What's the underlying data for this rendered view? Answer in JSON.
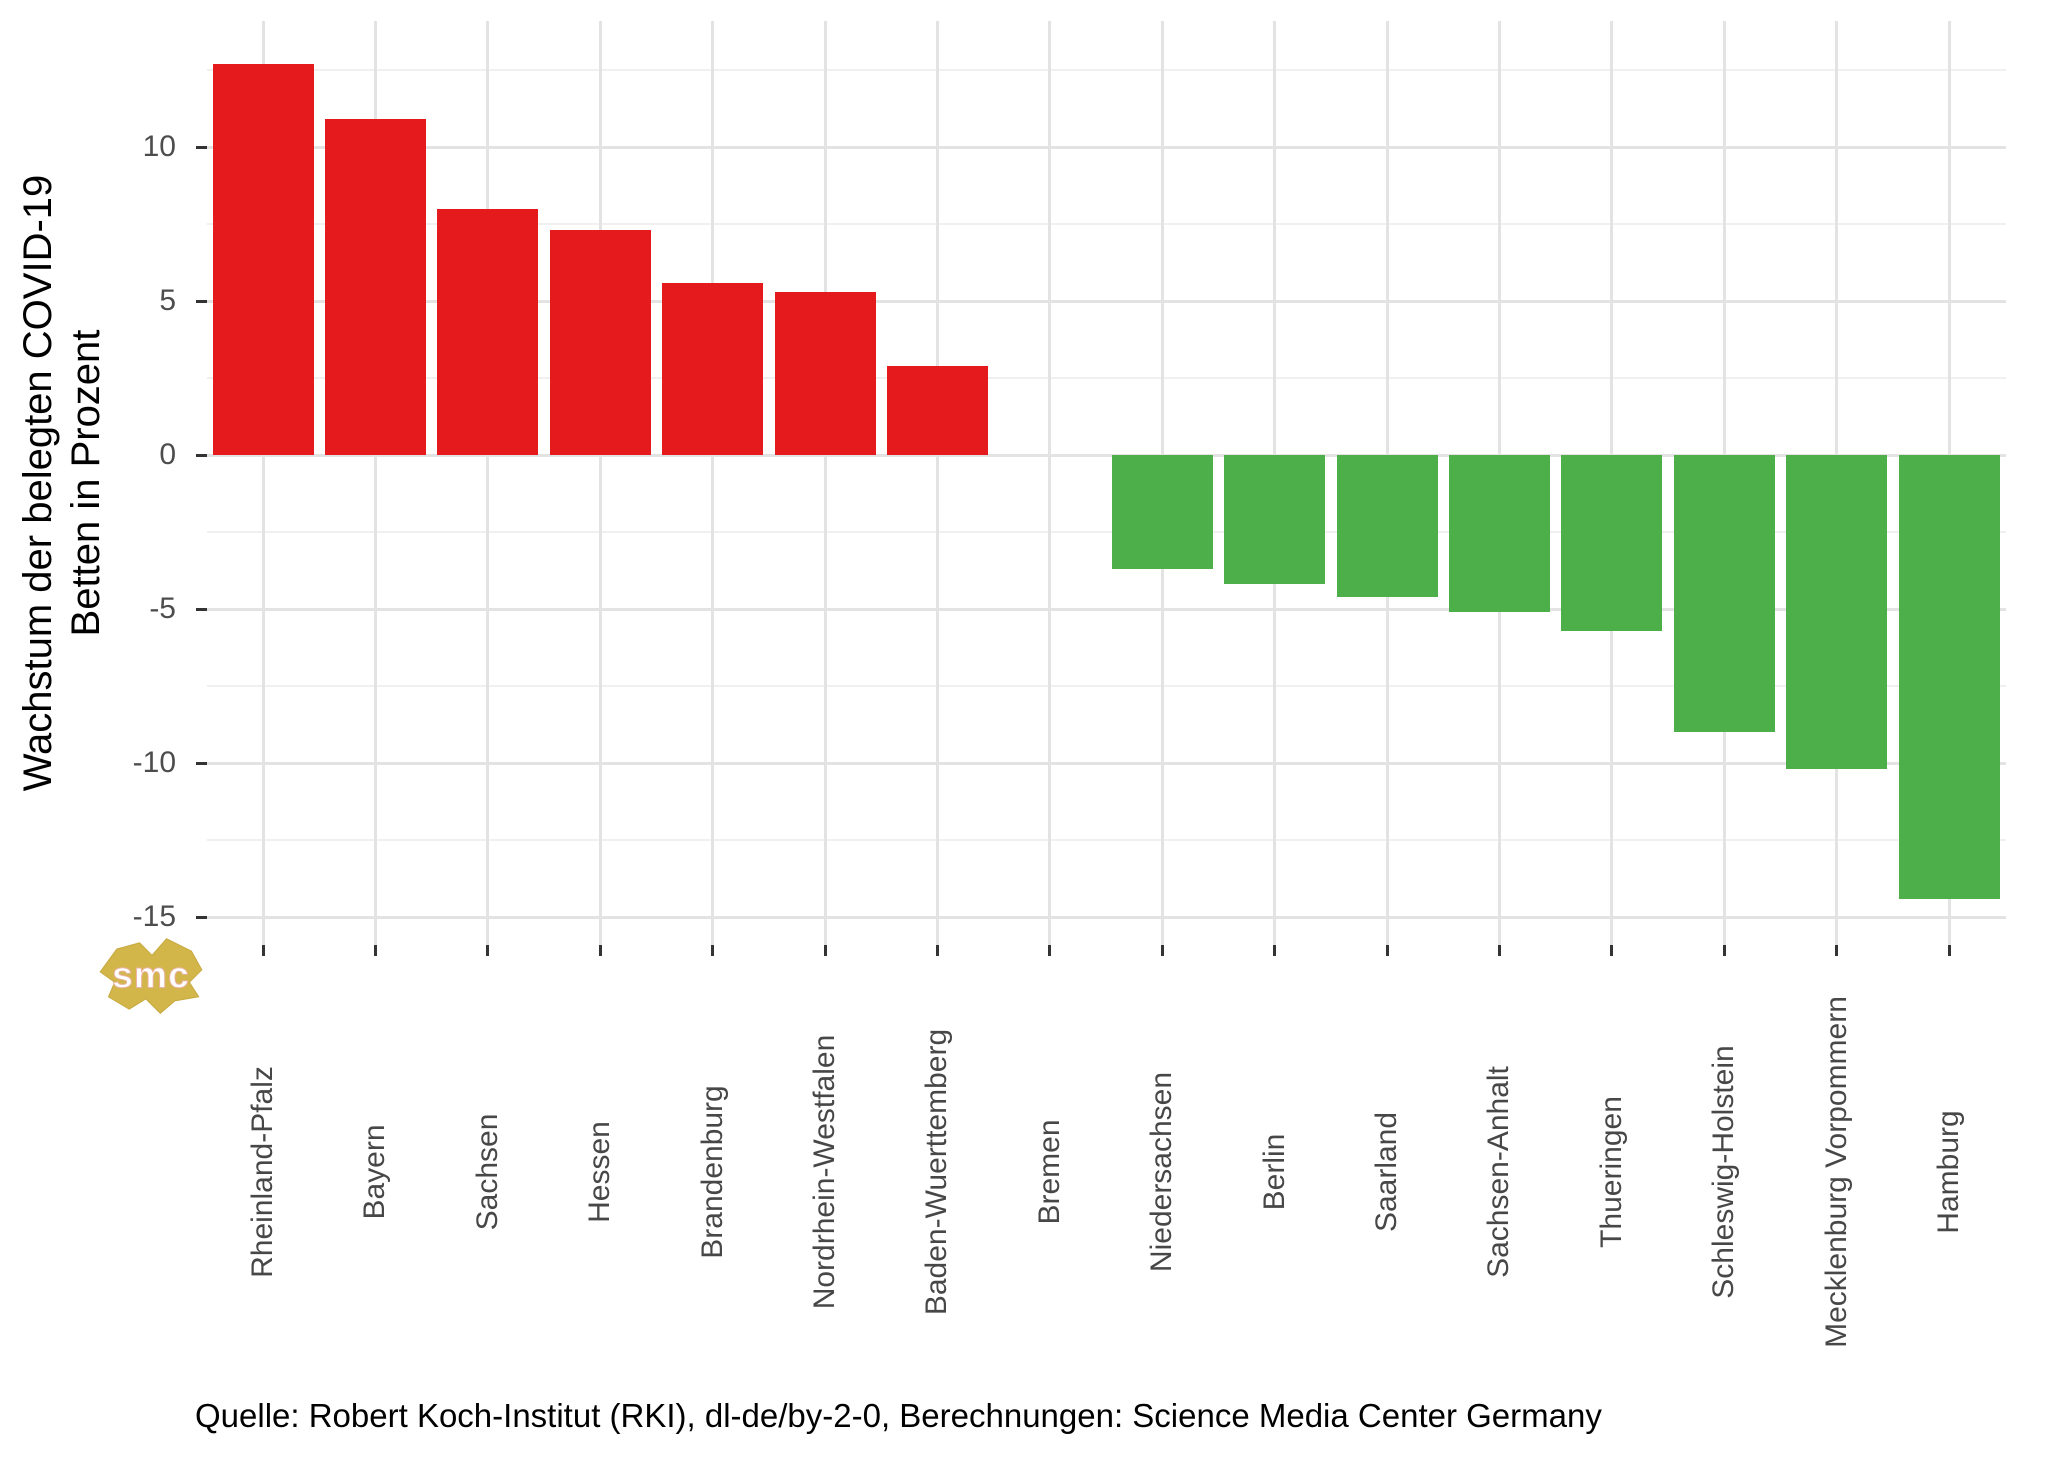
{
  "chart_data": {
    "type": "bar",
    "title": "",
    "ylabel_lines": [
      "Wachstum der belegten COVID-19",
      "Betten in Prozent"
    ],
    "ylabel": "Wachstum der belegten COVID-19 Betten in Prozent",
    "xlabel": "",
    "categories": [
      "Rheinland-Pfalz",
      "Bayern",
      "Sachsen",
      "Hessen",
      "Brandenburg",
      "Nordrhein-Westfalen",
      "Baden-Wuerttemberg",
      "Bremen",
      "Niedersachsen",
      "Berlin",
      "Saarland",
      "Sachsen-Anhalt",
      "Thueringen",
      "Schleswig-Holstein",
      "Mecklenburg Vorpommern",
      "Hamburg"
    ],
    "values": [
      12.7,
      10.9,
      8.0,
      7.3,
      5.6,
      5.3,
      2.9,
      0,
      -3.7,
      -4.2,
      -4.6,
      -5.1,
      -5.7,
      -9.0,
      -10.2,
      -14.4
    ],
    "y_ticks_major": [
      10,
      5,
      0,
      -5,
      -10,
      -15
    ],
    "y_ticks_minor": [
      12.5,
      7.5,
      2.5,
      -2.5,
      -7.5,
      -12.5
    ],
    "ylim": [
      -15.9,
      14.1
    ],
    "grid": true,
    "legend": "none",
    "bar_rotated_labels": true,
    "colors": {
      "positive_bar": "#e41a1c",
      "negative_bar": "#4daf4a",
      "grid_major": "#e3e3e3",
      "grid_minor": "#f0f0f0",
      "axis_tick": "#333333",
      "axis_text": "#474747",
      "y_tick_text": "#4d4d4d",
      "title_text": "#000000",
      "watermark_gold": "#d2b64a"
    }
  },
  "source_line": "Quelle: Robert Koch-Institut (RKI), dl-de/by-2-0, Berechnungen: Science Media Center Germany",
  "watermark": {
    "text": "smc"
  }
}
